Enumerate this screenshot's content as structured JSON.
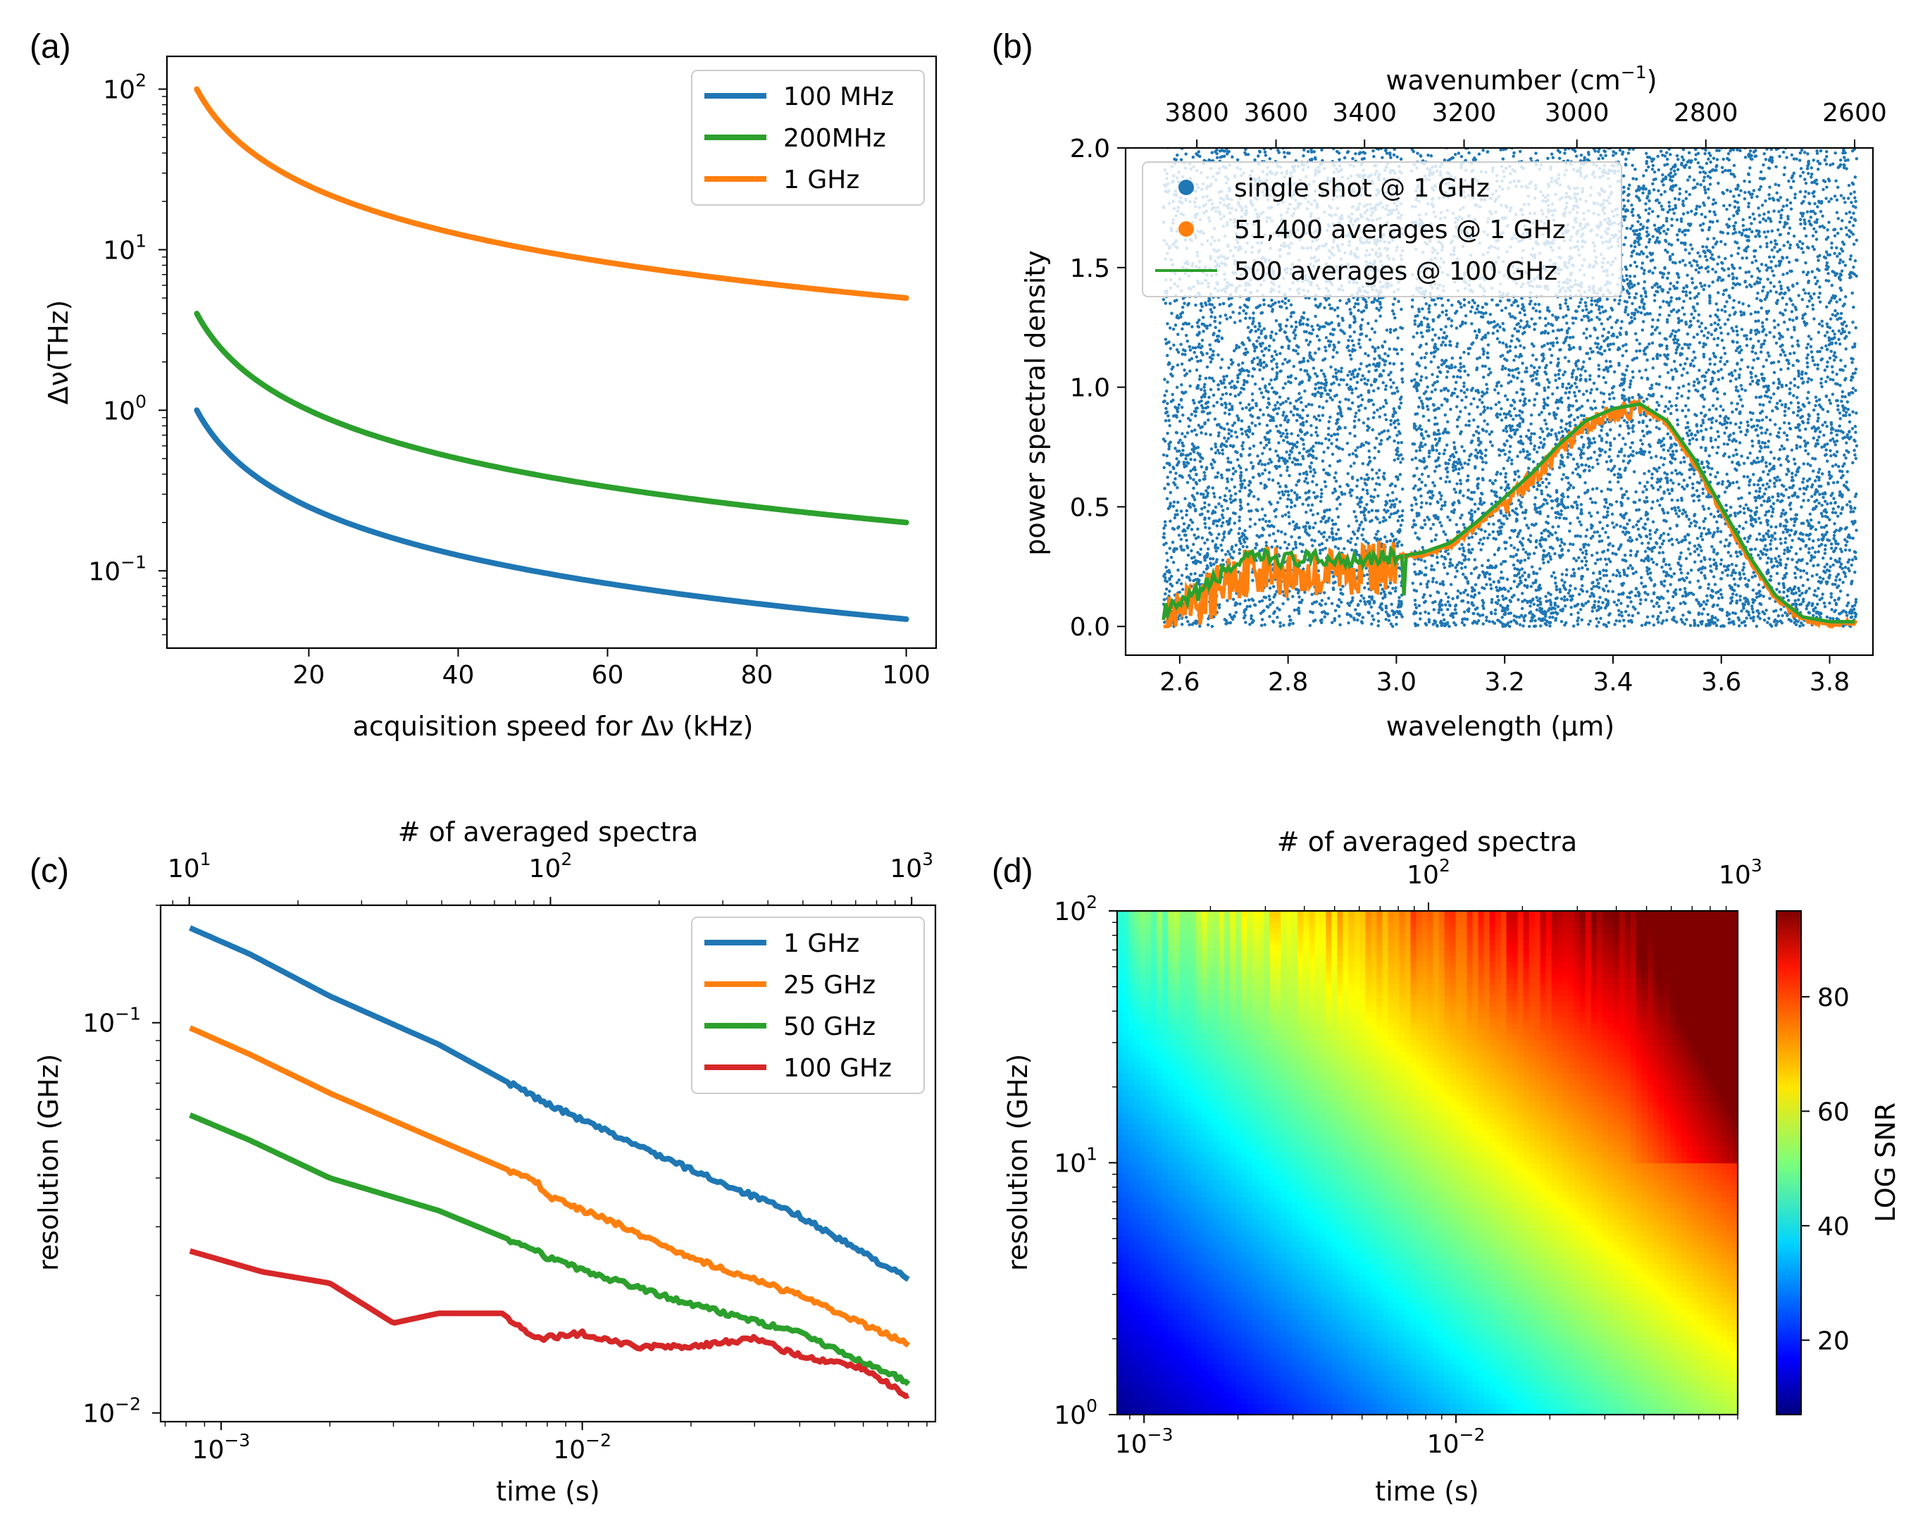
{
  "colors": {
    "blue": "#1f77b4",
    "orange": "#ff7f0e",
    "green": "#2ca02c",
    "red": "#d62728",
    "legend_edge": "#cccccc"
  },
  "chart_data": [
    {
      "panel": "(a)",
      "type": "line",
      "xlabel": "acquisition speed for Δν (kHz)",
      "ylabel": "Δν(THz)",
      "xlim": [
        1,
        104
      ],
      "ylim": [
        0.033,
        160
      ],
      "yscale": "log",
      "xticks": [
        "20",
        "40",
        "60",
        "80",
        "100"
      ],
      "xtick_values": [
        20,
        40,
        60,
        80,
        100
      ],
      "ytick_values": [
        0.1,
        1,
        10,
        100
      ],
      "yticks": [
        [
          "10",
          "−1"
        ],
        [
          "10",
          "0"
        ],
        [
          "10",
          "1"
        ],
        [
          "10",
          "2"
        ]
      ],
      "legend_position": "upper right",
      "model": "Δν = k / speed",
      "x_range": [
        5,
        100
      ],
      "series": [
        {
          "name": "100 MHz",
          "color_key": "blue",
          "k": 5,
          "values_at": {
            "5": 1.0,
            "20": 0.25,
            "50": 0.1,
            "100": 0.05
          }
        },
        {
          "name": " 200MHz",
          "color_key": "green",
          "k": 20,
          "values_at": {
            "5": 4.0,
            "20": 1.0,
            "50": 0.4,
            "100": 0.2
          }
        },
        {
          "name": "1 GHz",
          "color_key": "orange",
          "k": 500,
          "values_at": {
            "5": 100,
            "20": 25,
            "50": 10,
            "100": 5
          }
        }
      ]
    },
    {
      "panel": "(b)",
      "type": "scatter",
      "xlabel": "wavelength (μm)",
      "ylabel": "power spectral density",
      "top_xlabel": "wavenumber (cm",
      "top_xlabel_sup": "−1",
      "top_xlabel_end": ")",
      "xlim": [
        2.5,
        3.88
      ],
      "ylim": [
        -0.12,
        2.0
      ],
      "xticks": [
        "2.6",
        "2.8",
        "3.0",
        "3.2",
        "3.4",
        "3.6",
        "3.8"
      ],
      "xtick_values": [
        2.6,
        2.8,
        3.0,
        3.2,
        3.4,
        3.6,
        3.8
      ],
      "yticks": [
        "0.0",
        "0.5",
        "1.0",
        "1.5",
        "2.0"
      ],
      "ytick_values": [
        0,
        0.5,
        1.0,
        1.5,
        2.0
      ],
      "top_xticks": [
        "3800",
        "3600",
        "3400",
        "3200",
        "3000",
        "2800",
        "2600"
      ],
      "top_xtick_values": [
        3800,
        3600,
        3400,
        3200,
        3000,
        2800,
        2600
      ],
      "legend_position": "upper left",
      "series": [
        {
          "name": "single shot @ 1 GHz",
          "color_key": "blue",
          "marker": "dot",
          "description": "noise scatter 0–2.0 across 2.57–3.85 µm with gaps near 2.9 and 3.02 µm"
        },
        {
          "name": "51,400 averages @ 1 GHz",
          "color_key": "orange",
          "marker": "dot",
          "x": [
            2.57,
            2.6,
            2.65,
            2.7,
            2.75,
            2.8,
            2.85,
            2.9,
            2.95,
            3.0,
            3.05,
            3.1,
            3.15,
            3.2,
            3.25,
            3.3,
            3.35,
            3.4,
            3.45,
            3.5,
            3.55,
            3.6,
            3.65,
            3.7,
            3.75,
            3.8,
            3.85
          ],
          "y": [
            0.05,
            0.07,
            0.15,
            0.25,
            0.28,
            0.26,
            0.25,
            0.27,
            0.28,
            0.29,
            0.3,
            0.34,
            0.42,
            0.52,
            0.62,
            0.74,
            0.85,
            0.9,
            0.92,
            0.85,
            0.68,
            0.48,
            0.28,
            0.12,
            0.03,
            0.01,
            0.02
          ]
        },
        {
          "name": "500 averages @ 100 GHz",
          "color_key": "green",
          "marker": "line",
          "x": [
            2.57,
            2.6,
            2.65,
            2.7,
            2.75,
            2.8,
            2.85,
            2.9,
            2.95,
            3.0,
            3.05,
            3.1,
            3.15,
            3.2,
            3.25,
            3.3,
            3.35,
            3.4,
            3.45,
            3.5,
            3.55,
            3.6,
            3.65,
            3.7,
            3.75,
            3.8,
            3.85
          ],
          "y": [
            0.06,
            0.08,
            0.17,
            0.26,
            0.29,
            0.28,
            0.28,
            0.28,
            0.29,
            0.29,
            0.31,
            0.35,
            0.44,
            0.54,
            0.64,
            0.76,
            0.86,
            0.91,
            0.93,
            0.86,
            0.7,
            0.5,
            0.3,
            0.13,
            0.04,
            0.02,
            0.02
          ]
        }
      ]
    },
    {
      "panel": "(c)",
      "type": "line",
      "xlabel": "time (s)",
      "ylabel": "resolution (GHz)",
      "top_xlabel": "# of averaged spectra",
      "xscale": "log",
      "yscale": "log",
      "xlim": [
        0.00068,
        0.095
      ],
      "ylim": [
        0.0095,
        0.2
      ],
      "xtick_values": [
        0.001,
        0.01
      ],
      "xticks": [
        [
          "10",
          "−3"
        ],
        [
          "10",
          "−2"
        ]
      ],
      "ytick_values": [
        0.01,
        0.1
      ],
      "yticks": [
        [
          "10",
          "−2"
        ],
        [
          "10",
          "−1"
        ]
      ],
      "top_xtick_values": [
        10,
        100,
        1000
      ],
      "top_xticks": [
        [
          "10",
          "1"
        ],
        [
          "10",
          "2"
        ],
        [
          "10",
          "3"
        ]
      ],
      "legend_position": "upper right",
      "series": [
        {
          "name": "1 GHz",
          "color_key": "blue",
          "x": [
            0.00082,
            0.0012,
            0.002,
            0.004,
            0.0075,
            0.008,
            0.012,
            0.02,
            0.04,
            0.08
          ],
          "y": [
            0.175,
            0.15,
            0.117,
            0.088,
            0.064,
            0.062,
            0.052,
            0.042,
            0.032,
            0.022
          ]
        },
        {
          "name": "25 GHz",
          "color_key": "orange",
          "x": [
            0.00082,
            0.0012,
            0.002,
            0.004,
            0.0075,
            0.008,
            0.012,
            0.02,
            0.04,
            0.08
          ],
          "y": [
            0.097,
            0.083,
            0.066,
            0.05,
            0.039,
            0.036,
            0.031,
            0.025,
            0.02,
            0.015
          ]
        },
        {
          "name": "50 GHz",
          "color_key": "green",
          "x": [
            0.00082,
            0.0012,
            0.002,
            0.004,
            0.0075,
            0.008,
            0.012,
            0.02,
            0.04,
            0.08
          ],
          "y": [
            0.058,
            0.05,
            0.04,
            0.033,
            0.026,
            0.025,
            0.022,
            0.019,
            0.016,
            0.012
          ]
        },
        {
          "name": "100 GHz",
          "color_key": "red",
          "x": [
            0.00082,
            0.0013,
            0.002,
            0.003,
            0.004,
            0.006,
            0.0075,
            0.01,
            0.014,
            0.02,
            0.03,
            0.04,
            0.06,
            0.08
          ],
          "y": [
            0.026,
            0.023,
            0.0215,
            0.017,
            0.018,
            0.018,
            0.0155,
            0.016,
            0.0148,
            0.0148,
            0.0155,
            0.014,
            0.013,
            0.011
          ]
        }
      ]
    },
    {
      "panel": "(d)",
      "type": "heatmap",
      "xlabel": "time (s)",
      "ylabel": "resolution (GHz)",
      "top_xlabel": "# of averaged spectra",
      "xscale": "log",
      "yscale": "log",
      "xlim": [
        0.00082,
        0.08
      ],
      "ylim": [
        1,
        100
      ],
      "xtick_values": [
        0.001,
        0.01
      ],
      "xticks": [
        [
          "10",
          "−3"
        ],
        [
          "10",
          "−2"
        ]
      ],
      "ytick_values": [
        1,
        10,
        100
      ],
      "yticks": [
        [
          "10",
          "0"
        ],
        [
          "10",
          "1"
        ],
        [
          "10",
          "2"
        ]
      ],
      "top_xtick_values": [
        100,
        1000
      ],
      "top_xticks": [
        [
          "10",
          "2"
        ],
        [
          "10",
          "3"
        ]
      ],
      "colorbar": {
        "label": "LOG SNR",
        "range": [
          7,
          95
        ],
        "ticks": [
          20,
          40,
          60,
          80
        ],
        "colormap": "jet"
      },
      "description": "SNR increases with both time and resolution; ~7 at lower-left, ~95 at upper-right"
    }
  ]
}
